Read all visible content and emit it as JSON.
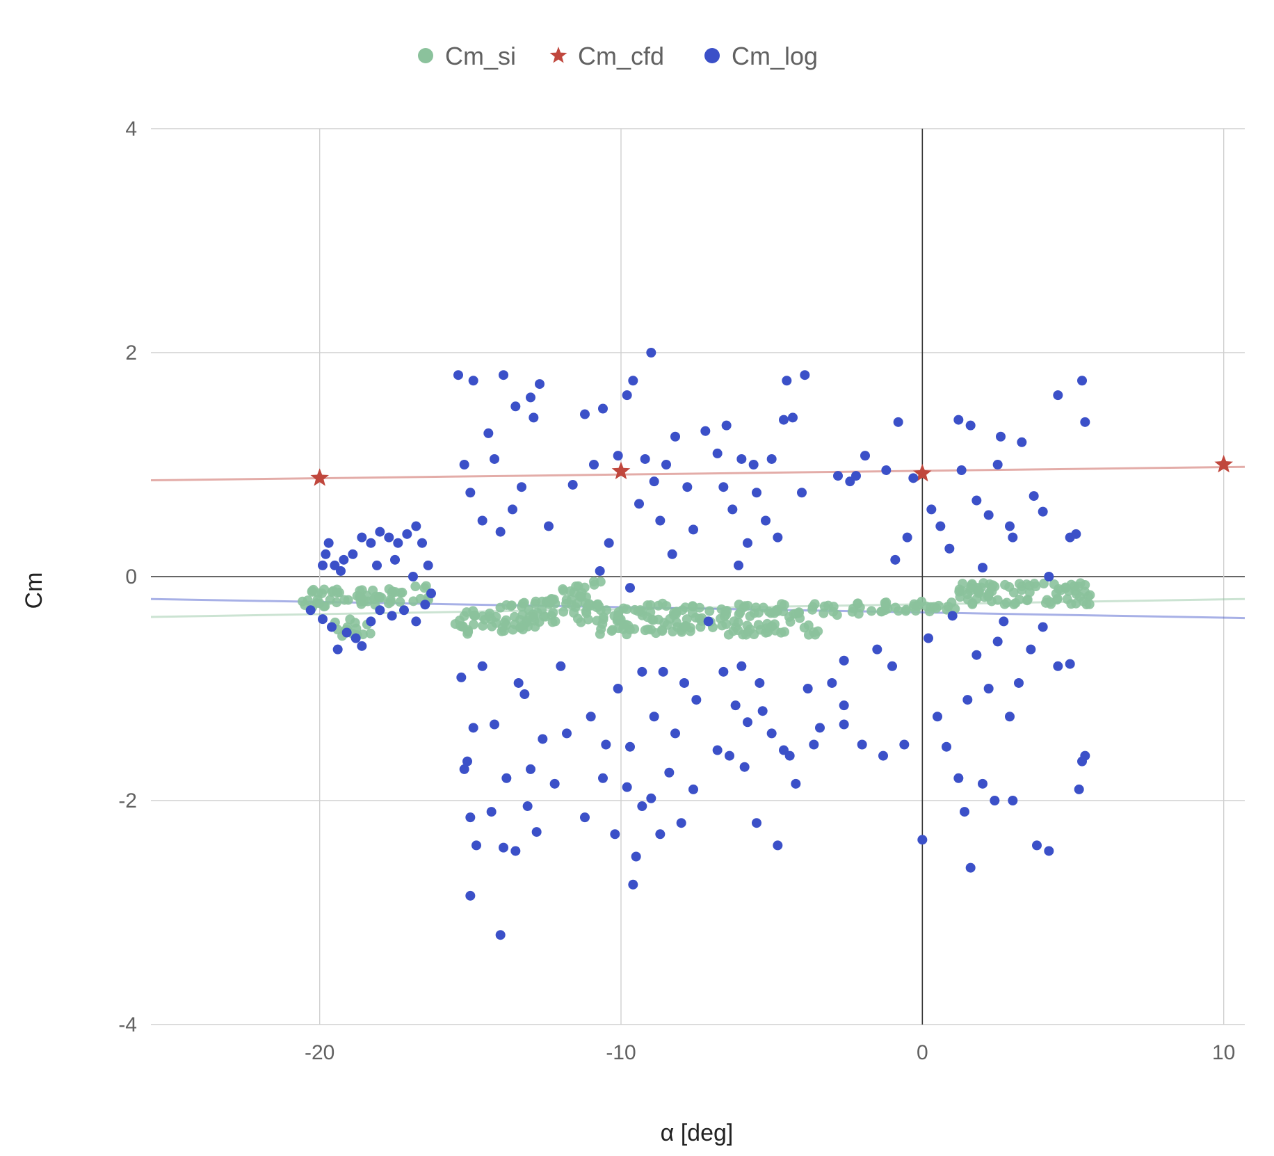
{
  "chart_data": {
    "type": "scatter",
    "title": "",
    "xlabel": "α [deg]",
    "ylabel": "Cm",
    "xlim": [
      -25.6,
      10.7
    ],
    "ylim": [
      -4,
      4
    ],
    "xticks": [
      -20,
      -10,
      0,
      10
    ],
    "yticks": [
      4,
      2,
      0,
      -2,
      -4
    ],
    "x_tick_labels": [
      "-20",
      "-10",
      "0",
      "10"
    ],
    "y_tick_labels": [
      "4",
      "2",
      "0",
      "-2",
      "-4"
    ],
    "grid": true,
    "legend_position": "top-center",
    "series": [
      {
        "name": "Cm_si",
        "marker": "circle",
        "color": "#8BC29C",
        "trendline": {
          "type": "linear",
          "from": [
            -25.6,
            -0.36
          ],
          "to": [
            10.7,
            -0.2
          ]
        },
        "clusters": [
          {
            "x_range": [
              -20.6,
              -16.2
            ],
            "y_center": -0.2,
            "y_spread": 0.08,
            "slope": 0.01,
            "count": 60
          },
          {
            "x_range": [
              -19.5,
              -18.0
            ],
            "y_center": -0.45,
            "y_spread": 0.08,
            "slope": 0.0,
            "count": 14
          },
          {
            "x_range": [
              -15.5,
              -10.6
            ],
            "y_center": -0.42,
            "y_spread": 0.12,
            "slope": 0.03,
            "count": 90
          },
          {
            "x_range": [
              -12.5,
              -10.6
            ],
            "y_center": -0.2,
            "y_spread": 0.06,
            "slope": 0.06,
            "count": 25
          },
          {
            "x_range": [
              -10.8,
              -3.4
            ],
            "y_center": -0.38,
            "y_spread": 0.14,
            "slope": 0.0,
            "count": 150
          },
          {
            "x_range": [
              -3.4,
              1.2
            ],
            "y_center": -0.3,
            "y_spread": 0.05,
            "slope": 0.01,
            "count": 40
          },
          {
            "x_range": [
              1.2,
              5.6
            ],
            "y_center": -0.15,
            "y_spread": 0.1,
            "slope": 0.0,
            "count": 80
          }
        ]
      },
      {
        "name": "Cm_cfd",
        "marker": "star",
        "color": "#C0473D",
        "trendline": {
          "type": "linear",
          "from": [
            -25.6,
            0.86
          ],
          "to": [
            10.7,
            0.98
          ]
        },
        "points": [
          [
            -20,
            0.88
          ],
          [
            -10,
            0.94
          ],
          [
            0,
            0.92
          ],
          [
            10,
            1.0
          ]
        ]
      },
      {
        "name": "Cm_log",
        "marker": "circle",
        "color": "#3B50C8",
        "trendline": {
          "type": "linear",
          "from": [
            -25.6,
            -0.2
          ],
          "to": [
            10.7,
            -0.37
          ]
        },
        "points": [
          [
            -20.3,
            -0.3
          ],
          [
            -19.9,
            -0.38
          ],
          [
            -19.6,
            -0.45
          ],
          [
            -19.4,
            -0.65
          ],
          [
            -19.1,
            -0.5
          ],
          [
            -18.8,
            -0.55
          ],
          [
            -18.6,
            -0.62
          ],
          [
            -18.3,
            -0.4
          ],
          [
            -18.0,
            -0.3
          ],
          [
            -17.6,
            -0.35
          ],
          [
            -17.2,
            -0.3
          ],
          [
            -16.8,
            -0.4
          ],
          [
            -16.5,
            -0.25
          ],
          [
            -16.3,
            -0.15
          ],
          [
            -19.9,
            0.1
          ],
          [
            -19.7,
            0.3
          ],
          [
            -19.5,
            0.1
          ],
          [
            -19.2,
            0.15
          ],
          [
            -18.9,
            0.2
          ],
          [
            -18.6,
            0.35
          ],
          [
            -18.3,
            0.3
          ],
          [
            -18.0,
            0.4
          ],
          [
            -17.7,
            0.35
          ],
          [
            -17.4,
            0.3
          ],
          [
            -17.1,
            0.38
          ],
          [
            -16.8,
            0.45
          ],
          [
            -16.6,
            0.3
          ],
          [
            -16.4,
            0.1
          ],
          [
            -19.8,
            0.2
          ],
          [
            -19.3,
            0.05
          ],
          [
            -18.1,
            0.1
          ],
          [
            -17.5,
            0.15
          ],
          [
            -16.9,
            0.0
          ],
          [
            -15.4,
            1.8
          ],
          [
            -14.9,
            1.75
          ],
          [
            -14.4,
            1.28
          ],
          [
            -13.9,
            1.8
          ],
          [
            -13.5,
            1.52
          ],
          [
            -13.0,
            1.6
          ],
          [
            -12.7,
            1.72
          ],
          [
            -12.9,
            1.42
          ],
          [
            -15.2,
            1.0
          ],
          [
            -14.6,
            0.5
          ],
          [
            -14.2,
            1.05
          ],
          [
            -13.3,
            0.8
          ],
          [
            -12.4,
            0.45
          ],
          [
            -15.0,
            0.75
          ],
          [
            -14.0,
            0.4
          ],
          [
            -13.6,
            0.6
          ],
          [
            -15.3,
            -0.9
          ],
          [
            -15.1,
            -1.65
          ],
          [
            -14.9,
            -1.35
          ],
          [
            -14.6,
            -0.8
          ],
          [
            -14.2,
            -1.32
          ],
          [
            -13.8,
            -1.8
          ],
          [
            -13.4,
            -0.95
          ],
          [
            -13.0,
            -1.72
          ],
          [
            -12.6,
            -1.45
          ],
          [
            -12.2,
            -1.85
          ],
          [
            -11.8,
            -1.4
          ],
          [
            -15.0,
            -2.15
          ],
          [
            -14.8,
            -2.4
          ],
          [
            -14.3,
            -2.1
          ],
          [
            -13.9,
            -2.42
          ],
          [
            -13.5,
            -2.45
          ],
          [
            -13.1,
            -2.05
          ],
          [
            -12.8,
            -2.28
          ],
          [
            -15.0,
            -2.85
          ],
          [
            -14.0,
            -3.2
          ],
          [
            -15.2,
            -1.72
          ],
          [
            -13.2,
            -1.05
          ],
          [
            -12.0,
            -0.8
          ],
          [
            -11.6,
            0.82
          ],
          [
            -11.2,
            1.45
          ],
          [
            -10.9,
            1.0
          ],
          [
            -10.6,
            1.5
          ],
          [
            -10.1,
            1.08
          ],
          [
            -9.8,
            1.62
          ],
          [
            -9.6,
            1.75
          ],
          [
            -9.2,
            1.05
          ],
          [
            -8.9,
            0.85
          ],
          [
            -8.5,
            1.0
          ],
          [
            -9.0,
            2.0
          ],
          [
            -8.2,
            1.25
          ],
          [
            -7.8,
            0.8
          ],
          [
            -10.4,
            0.3
          ],
          [
            -9.4,
            0.65
          ],
          [
            -8.7,
            0.5
          ],
          [
            -8.3,
            0.2
          ],
          [
            -7.6,
            0.42
          ],
          [
            -10.7,
            0.05
          ],
          [
            -9.7,
            -0.1
          ],
          [
            -11.0,
            -1.25
          ],
          [
            -10.5,
            -1.5
          ],
          [
            -10.1,
            -1.0
          ],
          [
            -9.7,
            -1.52
          ],
          [
            -9.3,
            -0.85
          ],
          [
            -8.9,
            -1.25
          ],
          [
            -8.6,
            -0.85
          ],
          [
            -8.2,
            -1.4
          ],
          [
            -7.9,
            -0.95
          ],
          [
            -7.5,
            -1.1
          ],
          [
            -11.2,
            -2.15
          ],
          [
            -10.6,
            -1.8
          ],
          [
            -10.2,
            -2.3
          ],
          [
            -9.8,
            -1.88
          ],
          [
            -9.6,
            -2.75
          ],
          [
            -9.3,
            -2.05
          ],
          [
            -9.0,
            -1.98
          ],
          [
            -8.7,
            -2.3
          ],
          [
            -8.4,
            -1.75
          ],
          [
            -8.0,
            -2.2
          ],
          [
            -7.6,
            -1.9
          ],
          [
            -9.5,
            -2.5
          ],
          [
            -7.2,
            1.3
          ],
          [
            -6.8,
            1.1
          ],
          [
            -6.5,
            1.35
          ],
          [
            -6.0,
            1.05
          ],
          [
            -5.6,
            1.0
          ],
          [
            -5.0,
            1.05
          ],
          [
            -4.6,
            1.4
          ],
          [
            -4.3,
            1.42
          ],
          [
            -3.9,
            1.8
          ],
          [
            -4.5,
            1.75
          ],
          [
            -6.3,
            0.6
          ],
          [
            -5.8,
            0.3
          ],
          [
            -5.2,
            0.5
          ],
          [
            -4.8,
            0.35
          ],
          [
            -4.0,
            0.75
          ],
          [
            -6.6,
            0.8
          ],
          [
            -5.5,
            0.75
          ],
          [
            -6.1,
            0.1
          ],
          [
            -7.1,
            -0.4
          ],
          [
            -6.6,
            -0.85
          ],
          [
            -6.2,
            -1.15
          ],
          [
            -5.8,
            -1.3
          ],
          [
            -5.4,
            -0.95
          ],
          [
            -5.0,
            -1.4
          ],
          [
            -4.6,
            -1.55
          ],
          [
            -4.2,
            -1.85
          ],
          [
            -3.8,
            -1.0
          ],
          [
            -3.4,
            -1.35
          ],
          [
            -6.8,
            -1.55
          ],
          [
            -6.4,
            -1.6
          ],
          [
            -5.9,
            -1.7
          ],
          [
            -5.5,
            -2.2
          ],
          [
            -4.8,
            -2.4
          ],
          [
            -4.4,
            -1.6
          ],
          [
            -3.6,
            -1.5
          ],
          [
            -6.0,
            -0.8
          ],
          [
            -5.3,
            -1.2
          ],
          [
            -3.0,
            -0.95
          ],
          [
            -2.6,
            -0.75
          ],
          [
            -2.8,
            0.9
          ],
          [
            -2.4,
            0.85
          ],
          [
            -1.9,
            1.08
          ],
          [
            -1.2,
            0.95
          ],
          [
            -0.8,
            1.38
          ],
          [
            -0.3,
            0.88
          ],
          [
            -2.2,
            0.9
          ],
          [
            -0.9,
            0.15
          ],
          [
            -0.5,
            0.35
          ],
          [
            -2.6,
            -1.15
          ],
          [
            -2.0,
            -1.5
          ],
          [
            -1.5,
            -0.65
          ],
          [
            -1.0,
            -0.8
          ],
          [
            -0.6,
            -1.5
          ],
          [
            -1.3,
            -1.6
          ],
          [
            -2.6,
            -1.32
          ],
          [
            0.3,
            0.6
          ],
          [
            0.6,
            0.45
          ],
          [
            0.9,
            0.25
          ],
          [
            1.3,
            0.95
          ],
          [
            1.6,
            1.35
          ],
          [
            1.8,
            0.68
          ],
          [
            2.2,
            0.55
          ],
          [
            2.6,
            1.25
          ],
          [
            2.9,
            0.45
          ],
          [
            3.3,
            1.2
          ],
          [
            3.7,
            0.72
          ],
          [
            4.0,
            0.58
          ],
          [
            4.5,
            1.62
          ],
          [
            4.9,
            0.35
          ],
          [
            5.3,
            1.75
          ],
          [
            5.4,
            1.38
          ],
          [
            1.2,
            1.4
          ],
          [
            2.0,
            0.08
          ],
          [
            2.5,
            1.0
          ],
          [
            3.0,
            0.35
          ],
          [
            4.2,
            0.0
          ],
          [
            5.1,
            0.38
          ],
          [
            0.2,
            -0.55
          ],
          [
            0.5,
            -1.25
          ],
          [
            0.8,
            -1.52
          ],
          [
            1.2,
            -1.8
          ],
          [
            1.5,
            -1.1
          ],
          [
            1.8,
            -0.7
          ],
          [
            2.2,
            -1.0
          ],
          [
            2.5,
            -0.58
          ],
          [
            2.9,
            -1.25
          ],
          [
            3.2,
            -0.95
          ],
          [
            3.6,
            -0.65
          ],
          [
            4.0,
            -0.45
          ],
          [
            4.5,
            -0.8
          ],
          [
            4.9,
            -0.78
          ],
          [
            5.3,
            -1.65
          ],
          [
            5.4,
            -1.6
          ],
          [
            1.4,
            -2.1
          ],
          [
            1.6,
            -2.6
          ],
          [
            2.0,
            -1.85
          ],
          [
            2.4,
            -2.0
          ],
          [
            3.0,
            -2.0
          ],
          [
            3.8,
            -2.4
          ],
          [
            4.2,
            -2.45
          ],
          [
            5.2,
            -1.9
          ],
          [
            1.0,
            -0.35
          ],
          [
            2.7,
            -0.4
          ],
          [
            0.0,
            -2.35
          ]
        ]
      }
    ]
  }
}
